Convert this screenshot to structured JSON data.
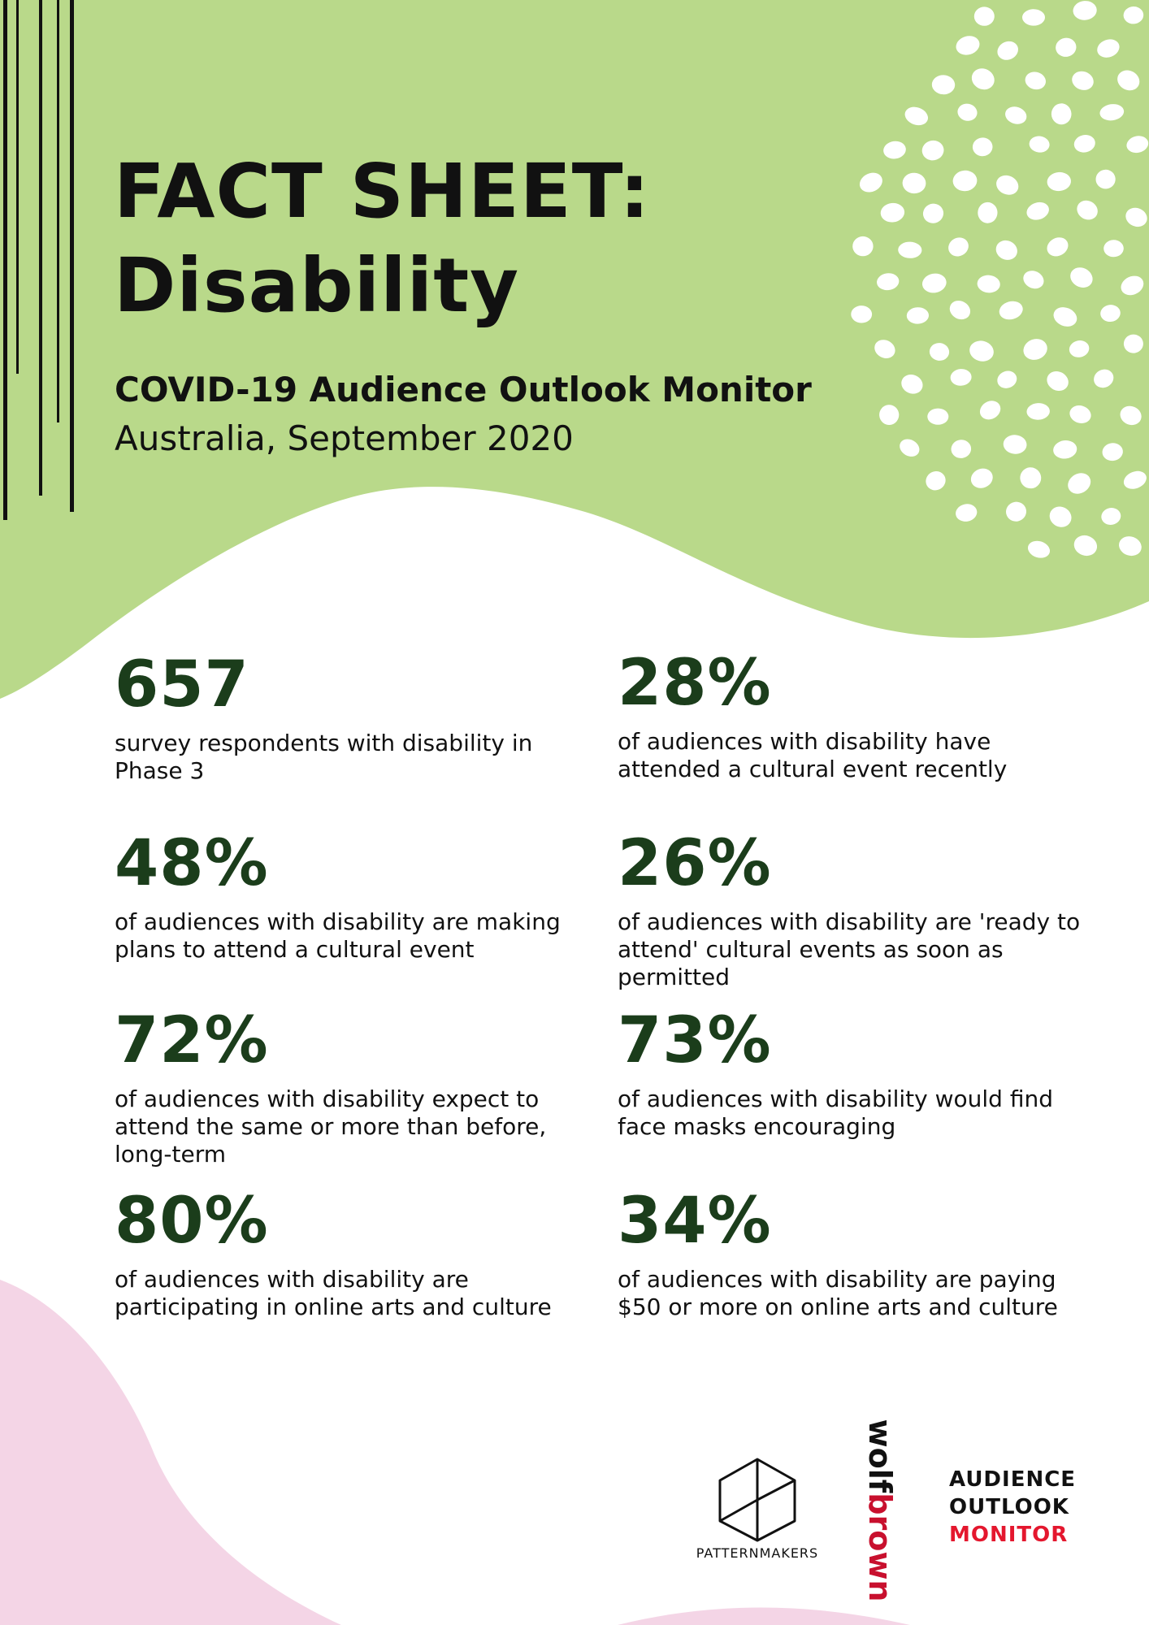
{
  "header": {
    "title_line1": "FACT SHEET:",
    "title_line2": "Disability",
    "subtitle": "COVID-19 Audience Outlook Monitor",
    "location_date": "Australia, September 2020"
  },
  "stats": [
    {
      "value": "657",
      "text": "survey respondents with disability in Phase 3"
    },
    {
      "value": "28%",
      "text": "of audiences with disability have attended a cultural event recently"
    },
    {
      "value": "48%",
      "text": "of audiences with disability are making plans to attend a cultural event"
    },
    {
      "value": "26%",
      "text": "of audiences with disability are 'ready to attend' cultural events as soon as permitted"
    },
    {
      "value": "72%",
      "text": "of audiences with disability expect to attend the same or more than before, long-term"
    },
    {
      "value": "73%",
      "text": "of audiences with disability would find face masks encouraging"
    },
    {
      "value": "80%",
      "text": "of audiences with disability are participating in online arts and culture"
    },
    {
      "value": "34%",
      "text": "of audiences with disability are paying $50 or more on online arts and culture"
    }
  ],
  "logos": {
    "patternmakers": "PATTERNMAKERS",
    "wolfbrown_w": "wolf",
    "wolfbrown_b": "brown",
    "aom_line1": "AUDIENCE",
    "aom_line2": "OUTLOOK",
    "aom_line3": "MONITOR"
  },
  "colors": {
    "green_bg": "#b9d98a",
    "pink_bg": "#f4d5e6",
    "stat_value": "#1b3d1b",
    "brand_red": "#e4172e"
  }
}
